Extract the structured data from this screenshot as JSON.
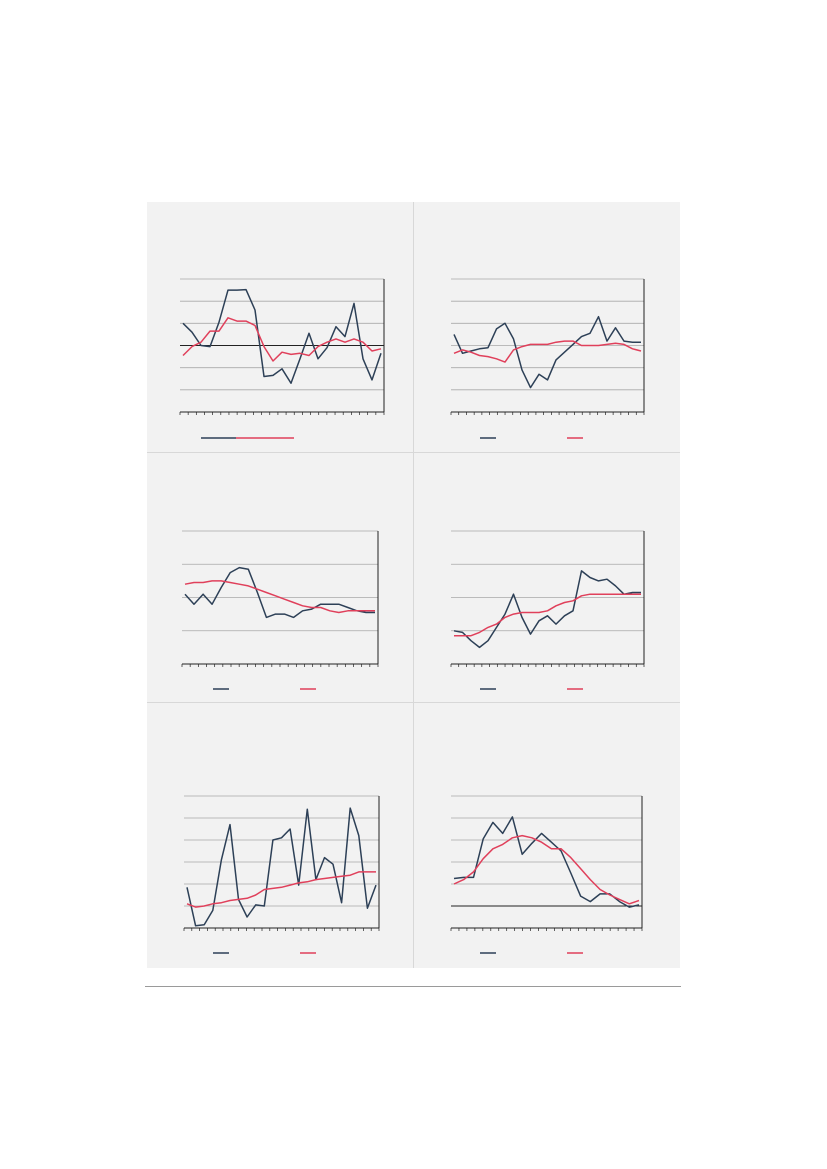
{
  "colors": {
    "series_a": "#2d4057",
    "series_b": "#e0405b",
    "grid": "#a9a9a9",
    "axis": "#222222",
    "panel_bg": "#f2f2f2"
  },
  "chart_data": [
    {
      "type": "line",
      "ylim": [
        -3,
        3
      ],
      "grid": true,
      "zero_line": true,
      "legend": "bottom-left",
      "marker_index": 25,
      "series": [
        {
          "values": [
            1.0,
            0.6,
            0.0,
            -0.05,
            1.05,
            2.5,
            2.5,
            2.52,
            1.6,
            -1.4,
            -1.35,
            -1.05,
            -1.7,
            -0.6,
            0.55,
            -0.6,
            -0.1,
            0.85,
            0.4,
            1.9,
            -0.6,
            -1.55,
            -0.35
          ]
        },
        {
          "values": [
            -0.45,
            -0.05,
            0.15,
            0.65,
            0.65,
            1.25,
            1.1,
            1.1,
            0.9,
            -0.05,
            -0.7,
            -0.3,
            -0.4,
            -0.35,
            -0.45,
            -0.05,
            0.15,
            0.3,
            0.15,
            0.3,
            0.15,
            -0.25,
            -0.15
          ]
        }
      ]
    },
    {
      "type": "line",
      "ylim": [
        -3,
        3
      ],
      "grid": true,
      "zero_line": false,
      "legend": "bottom-left",
      "marker_index": 25,
      "series": [
        {
          "values": [
            0.5,
            -0.35,
            -0.25,
            -0.15,
            -0.1,
            0.75,
            1.0,
            0.3,
            -1.1,
            -1.9,
            -1.3,
            -1.55,
            -0.65,
            -0.3,
            0.05,
            0.4,
            0.55,
            1.3,
            0.2,
            0.8,
            0.2,
            0.15,
            0.15
          ]
        },
        {
          "values": [
            -0.35,
            -0.2,
            -0.3,
            -0.45,
            -0.5,
            -0.6,
            -0.75,
            -0.2,
            -0.05,
            0.05,
            0.05,
            0.05,
            0.15,
            0.2,
            0.2,
            0.0,
            0.0,
            0.0,
            0.05,
            0.1,
            0.05,
            -0.15,
            -0.25
          ]
        }
      ]
    },
    {
      "type": "line",
      "ylim": [
        0,
        4
      ],
      "grid": true,
      "zero_line": false,
      "legend": "bottom-left",
      "marker_index": 24,
      "series": [
        {
          "values": [
            2.1,
            1.8,
            2.1,
            1.8,
            2.3,
            2.75,
            2.9,
            2.85,
            2.15,
            1.4,
            1.5,
            1.5,
            1.4,
            1.6,
            1.65,
            1.8,
            1.8,
            1.8,
            1.7,
            1.6,
            1.55,
            1.55
          ]
        },
        {
          "values": [
            2.4,
            2.45,
            2.45,
            2.5,
            2.5,
            2.45,
            2.4,
            2.35,
            2.25,
            2.15,
            2.05,
            1.95,
            1.85,
            1.75,
            1.7,
            1.7,
            1.6,
            1.55,
            1.6,
            1.6,
            1.6,
            1.6
          ]
        }
      ]
    },
    {
      "type": "line",
      "ylim": [
        0,
        4
      ],
      "grid": true,
      "zero_line": false,
      "legend": "bottom-left",
      "marker_index": 25,
      "series": [
        {
          "values": [
            1.0,
            0.95,
            0.7,
            0.5,
            0.7,
            1.1,
            1.5,
            2.1,
            1.4,
            0.9,
            1.3,
            1.45,
            1.2,
            1.45,
            1.6,
            2.8,
            2.6,
            2.5,
            2.55,
            2.35,
            2.1,
            2.15,
            2.15
          ]
        },
        {
          "values": [
            0.85,
            0.85,
            0.85,
            0.95,
            1.1,
            1.2,
            1.4,
            1.5,
            1.55,
            1.55,
            1.55,
            1.6,
            1.75,
            1.85,
            1.9,
            2.05,
            2.1,
            2.1,
            2.1,
            2.1,
            2.1,
            2.1,
            2.1
          ]
        }
      ]
    },
    {
      "type": "line",
      "ylim": [
        0,
        6
      ],
      "grid": true,
      "zero_line": false,
      "legend": "bottom-left",
      "marker_index": 25,
      "series": [
        {
          "values": [
            1.85,
            0.1,
            0.15,
            0.8,
            3.1,
            4.7,
            1.3,
            0.5,
            1.05,
            1.0,
            4.0,
            4.1,
            4.5,
            1.95,
            5.4,
            2.2,
            3.2,
            2.9,
            1.15,
            5.45,
            4.2,
            0.9,
            1.95
          ]
        },
        {
          "values": [
            1.1,
            0.95,
            1.0,
            1.1,
            1.15,
            1.25,
            1.3,
            1.35,
            1.5,
            1.75,
            1.8,
            1.85,
            1.95,
            2.05,
            2.1,
            2.2,
            2.25,
            2.3,
            2.35,
            2.4,
            2.55,
            2.55,
            2.55
          ]
        }
      ]
    },
    {
      "type": "line",
      "ylim": [
        -1,
        5
      ],
      "grid": true,
      "zero_line": true,
      "legend": "bottom-left",
      "marker_index": 24,
      "series": [
        {
          "values": [
            1.25,
            1.3,
            1.3,
            3.05,
            3.8,
            3.3,
            4.05,
            2.35,
            2.85,
            3.3,
            2.9,
            2.5,
            1.5,
            0.45,
            0.2,
            0.55,
            0.55,
            0.2,
            -0.05,
            0.05
          ]
        },
        {
          "values": [
            1.0,
            1.2,
            1.55,
            2.15,
            2.6,
            2.8,
            3.1,
            3.2,
            3.1,
            2.9,
            2.6,
            2.6,
            2.2,
            1.7,
            1.2,
            0.75,
            0.5,
            0.3,
            0.1,
            0.25
          ]
        }
      ]
    }
  ]
}
